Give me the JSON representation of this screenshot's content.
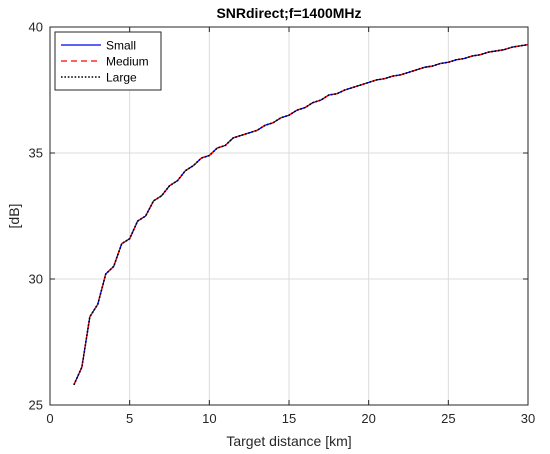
{
  "chart_data": {
    "type": "line",
    "title": "SNRdirect;f=1400MHz",
    "xlabel": "Target distance [km]",
    "ylabel": "[dB]",
    "xlim": [
      0,
      30
    ],
    "ylim": [
      25,
      40
    ],
    "xticks": [
      0,
      5,
      10,
      15,
      20,
      25,
      30
    ],
    "yticks": [
      25,
      30,
      35,
      40
    ],
    "grid": true,
    "legend_position": "top-left",
    "x": [
      1.5,
      2.0,
      2.5,
      3.0,
      3.5,
      4.0,
      4.5,
      5.0,
      5.5,
      6.0,
      6.5,
      7.0,
      7.5,
      8.0,
      8.5,
      9.0,
      9.5,
      10.0,
      10.5,
      11.0,
      11.5,
      12.0,
      12.5,
      13.0,
      13.5,
      14.0,
      14.5,
      15.0,
      15.5,
      16.0,
      16.5,
      17.0,
      17.5,
      18.0,
      18.5,
      19.0,
      19.5,
      20.0,
      20.5,
      21.0,
      21.5,
      22.0,
      22.5,
      23.0,
      23.5,
      24.0,
      24.5,
      25.0,
      25.5,
      26.0,
      26.5,
      27.0,
      27.5,
      28.0,
      28.5,
      29.0,
      29.5,
      30.0
    ],
    "series": [
      {
        "name": "Small",
        "color": "#0000ff",
        "dash": "solid",
        "values": [
          25.8,
          26.5,
          28.5,
          29.0,
          30.2,
          30.5,
          31.4,
          31.6,
          32.3,
          32.5,
          33.1,
          33.3,
          33.7,
          33.9,
          34.3,
          34.5,
          34.8,
          34.9,
          35.2,
          35.3,
          35.6,
          35.7,
          35.8,
          35.9,
          36.1,
          36.2,
          36.4,
          36.5,
          36.7,
          36.8,
          37.0,
          37.1,
          37.3,
          37.35,
          37.5,
          37.6,
          37.7,
          37.8,
          37.9,
          37.95,
          38.05,
          38.1,
          38.2,
          38.3,
          38.4,
          38.45,
          38.55,
          38.6,
          38.7,
          38.75,
          38.85,
          38.9,
          39.0,
          39.05,
          39.1,
          39.2,
          39.25,
          39.3
        ]
      },
      {
        "name": "Medium",
        "color": "#ff0000",
        "dash": "dashed",
        "values": [
          25.8,
          26.5,
          28.5,
          29.0,
          30.2,
          30.5,
          31.4,
          31.6,
          32.3,
          32.5,
          33.1,
          33.3,
          33.7,
          33.9,
          34.3,
          34.5,
          34.8,
          34.9,
          35.2,
          35.3,
          35.6,
          35.7,
          35.8,
          35.9,
          36.1,
          36.2,
          36.4,
          36.5,
          36.7,
          36.8,
          37.0,
          37.1,
          37.3,
          37.35,
          37.5,
          37.6,
          37.7,
          37.8,
          37.9,
          37.95,
          38.05,
          38.1,
          38.2,
          38.3,
          38.4,
          38.45,
          38.55,
          38.6,
          38.7,
          38.75,
          38.85,
          38.9,
          39.0,
          39.05,
          39.1,
          39.2,
          39.25,
          39.3
        ]
      },
      {
        "name": "Large",
        "color": "#000000",
        "dash": "dotted",
        "values": [
          25.8,
          26.5,
          28.5,
          29.0,
          30.2,
          30.5,
          31.4,
          31.6,
          32.3,
          32.5,
          33.1,
          33.3,
          33.7,
          33.9,
          34.3,
          34.5,
          34.8,
          34.9,
          35.2,
          35.3,
          35.6,
          35.7,
          35.8,
          35.9,
          36.1,
          36.2,
          36.4,
          36.5,
          36.7,
          36.8,
          37.0,
          37.1,
          37.3,
          37.35,
          37.5,
          37.6,
          37.7,
          37.8,
          37.9,
          37.95,
          38.05,
          38.1,
          38.2,
          38.3,
          38.4,
          38.45,
          38.55,
          38.6,
          38.7,
          38.75,
          38.85,
          38.9,
          39.0,
          39.05,
          39.1,
          39.2,
          39.25,
          39.3
        ]
      }
    ]
  }
}
